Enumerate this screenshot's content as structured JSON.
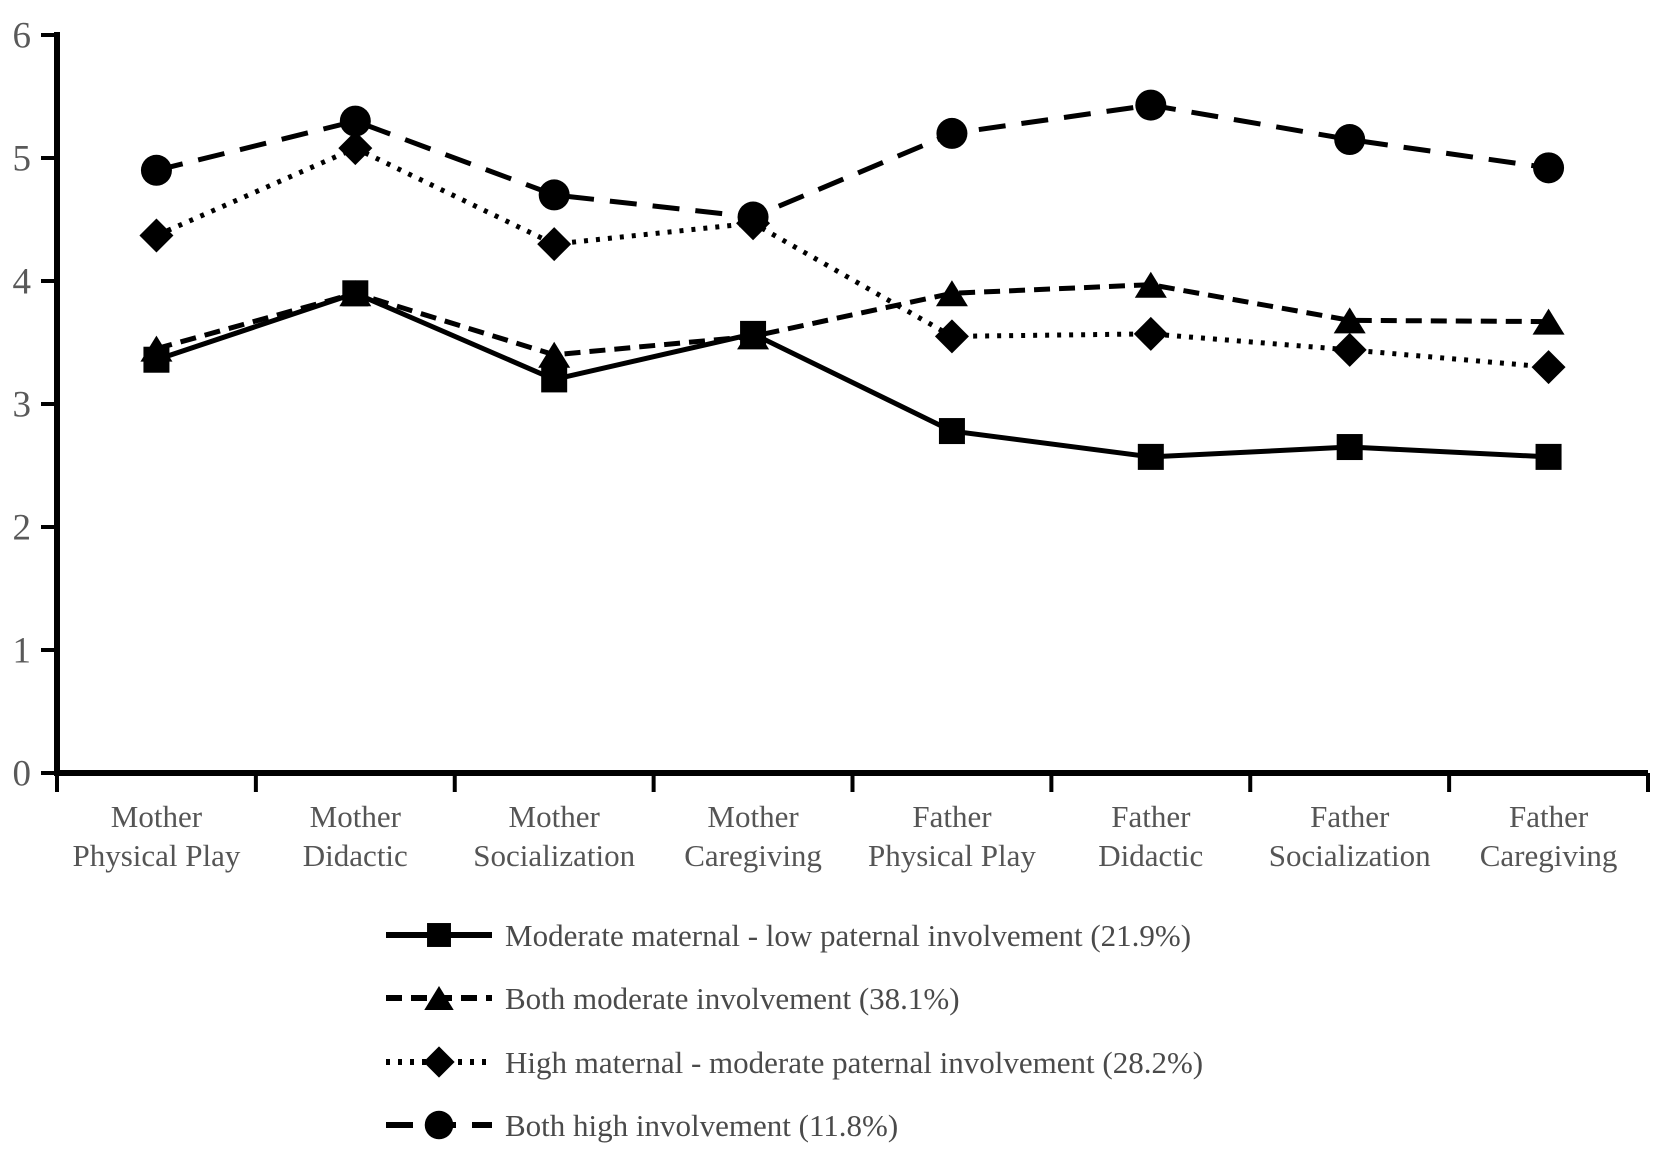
{
  "chart_data": {
    "type": "line",
    "title": "",
    "xlabel": "",
    "ylabel": "",
    "ylim": [
      0,
      6
    ],
    "yticks": [
      0,
      1,
      2,
      3,
      4,
      5,
      6
    ],
    "grid": false,
    "legend_position": "bottom-left",
    "categories": [
      [
        "Mother",
        "Physical Play"
      ],
      [
        "Mother",
        "Didactic"
      ],
      [
        "Mother",
        "Socialization"
      ],
      [
        "Mother",
        "Caregiving"
      ],
      [
        "Father",
        "Physical Play"
      ],
      [
        "Father",
        "Didactic"
      ],
      [
        "Father",
        "Socialization"
      ],
      [
        "Father",
        "Caregiving"
      ]
    ],
    "series": [
      {
        "name": "Moderate maternal - low paternal involvement (21.9%)",
        "marker": "square",
        "line_style": "solid",
        "values": [
          3.36,
          3.9,
          3.2,
          3.57,
          2.78,
          2.57,
          2.65,
          2.57
        ]
      },
      {
        "name": "Both moderate involvement (38.1%)",
        "marker": "triangle",
        "line_style": "short-dash",
        "values": [
          3.45,
          3.9,
          3.4,
          3.55,
          3.9,
          3.97,
          3.68,
          3.67
        ]
      },
      {
        "name": "High maternal - moderate paternal involvement (28.2%)",
        "marker": "diamond",
        "line_style": "dotted",
        "values": [
          4.37,
          5.08,
          4.3,
          4.47,
          3.55,
          3.57,
          3.44,
          3.3
        ]
      },
      {
        "name": "Both high involvement (11.8%)",
        "marker": "circle",
        "line_style": "long-dash",
        "values": [
          4.9,
          5.3,
          4.7,
          4.52,
          5.2,
          5.43,
          5.15,
          4.92
        ]
      }
    ],
    "colors": {
      "series_line": "#000000",
      "marker_fill": "#000000",
      "axis_line": "#000000",
      "tick_label": "#595959",
      "category_label": "#555555",
      "legend_text": "#4a4a4a",
      "background": "#ffffff"
    }
  }
}
